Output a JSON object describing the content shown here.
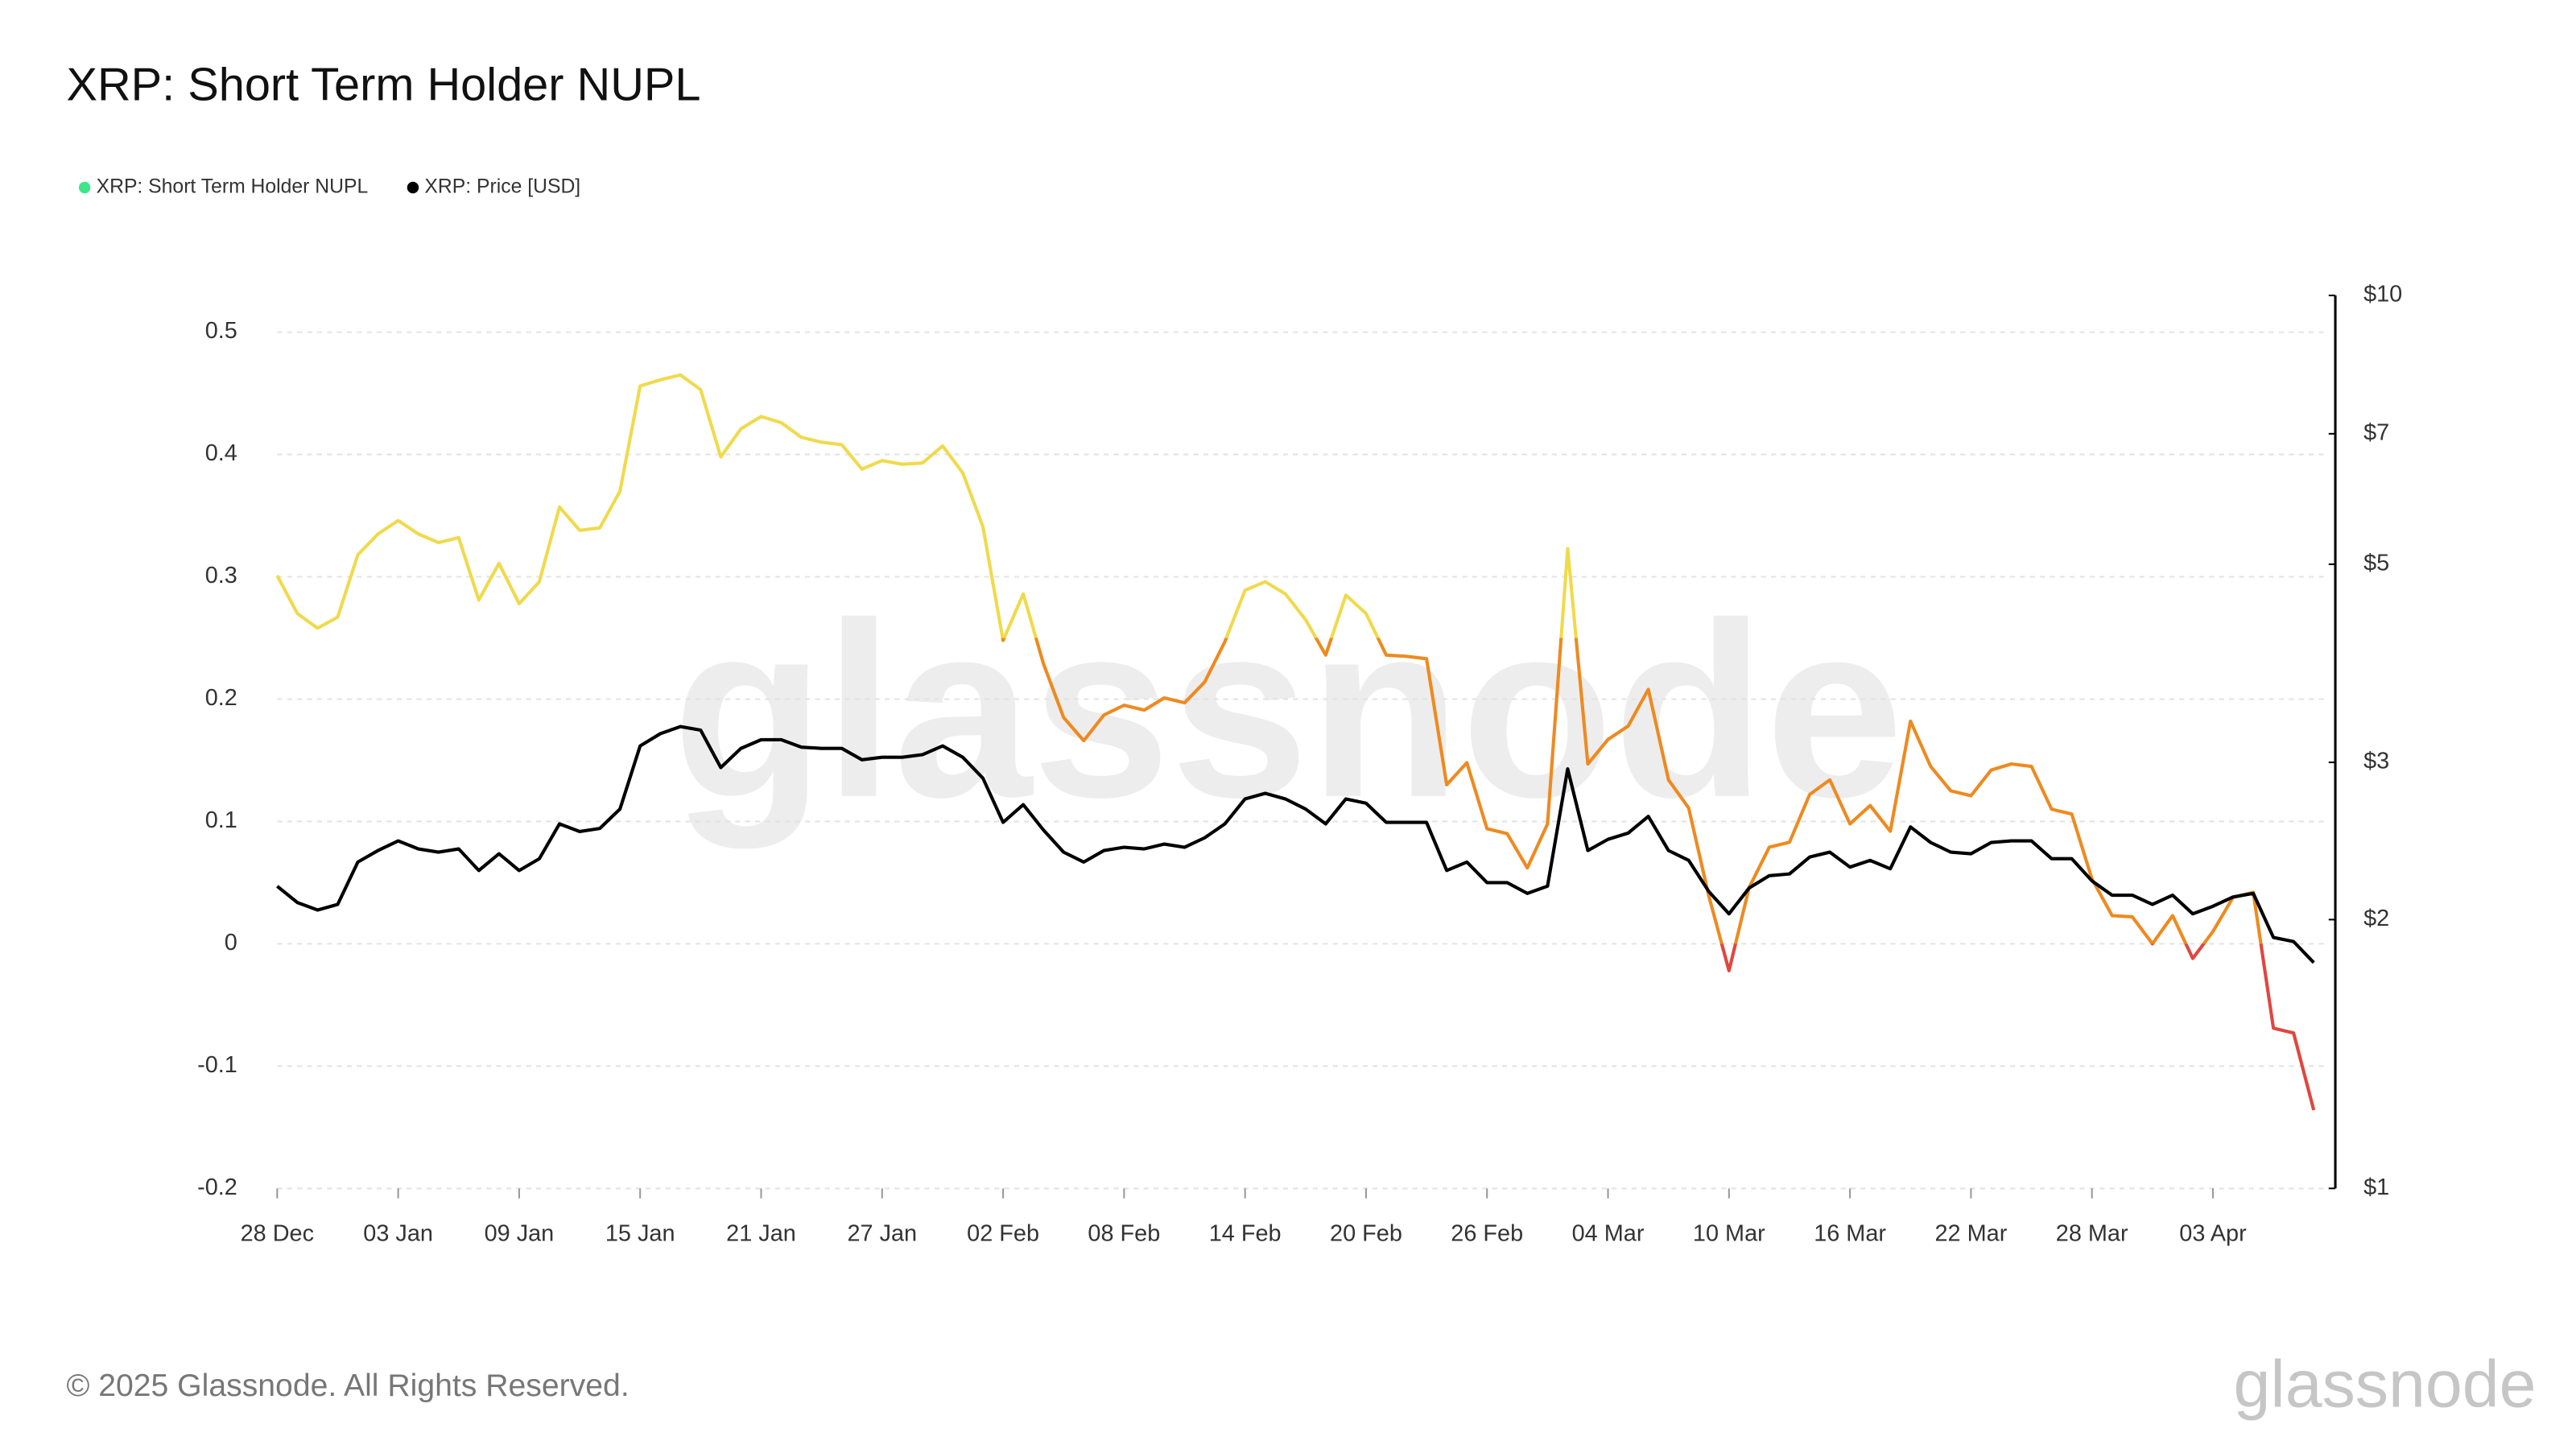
{
  "chart_data": {
    "type": "line",
    "title": "XRP: Short Term Holder NUPL",
    "watermark": "glassnode",
    "footer": "© 2025 Glassnode. All Rights Reserved.",
    "logo": "glassnode",
    "categories": [
      "28 Dec",
      null,
      null,
      null,
      null,
      null,
      "03 Jan",
      null,
      null,
      null,
      null,
      null,
      "09 Jan",
      null,
      null,
      null,
      null,
      null,
      "15 Jan",
      null,
      null,
      null,
      null,
      null,
      "21 Jan",
      null,
      null,
      null,
      null,
      null,
      "27 Jan",
      null,
      null,
      null,
      null,
      null,
      "02 Feb",
      null,
      null,
      null,
      null,
      null,
      "08 Feb",
      null,
      null,
      null,
      null,
      null,
      "14 Feb",
      null,
      null,
      null,
      null,
      null,
      "20 Feb",
      null,
      null,
      null,
      null,
      null,
      "26 Feb",
      null,
      null,
      null,
      null,
      null,
      "04 Mar",
      null,
      null,
      null,
      null,
      null,
      "10 Mar",
      null,
      null,
      null,
      null,
      null,
      "16 Mar",
      null,
      null,
      null,
      null,
      null,
      "22 Mar",
      null,
      null,
      null,
      null,
      null,
      "28 Mar",
      null,
      null,
      null,
      null,
      null,
      "03 Apr",
      null,
      null,
      null,
      null,
      null
    ],
    "ylim": [
      -0.2,
      0.53
    ],
    "yticks": [
      -0.2,
      -0.1,
      0,
      0.1,
      0.2,
      0.3,
      0.4,
      0.5
    ],
    "y2lim": [
      1,
      10
    ],
    "y2_log": true,
    "y2ticks": [
      {
        "value": 1,
        "label": "$1"
      },
      {
        "value": 2,
        "label": "$2"
      },
      {
        "value": 3,
        "label": "$3"
      },
      {
        "value": 5,
        "label": "$5"
      },
      {
        "value": 7,
        "label": "$7"
      },
      {
        "value": 10,
        "label": "$10"
      }
    ],
    "grid": true,
    "legend": "top-left",
    "series": [
      {
        "name": "XRP: Short Term Holder NUPL",
        "color": "#3ee68a",
        "line_colors": {
          "thresholds": [
            0,
            0.25
          ],
          "colors": [
            "#e0463f",
            "#ee8a20",
            "#f0da4c"
          ]
        },
        "values": [
          0.301,
          0.27,
          0.258,
          0.267,
          0.318,
          0.335,
          0.346,
          0.335,
          0.328,
          0.332,
          0.281,
          0.311,
          0.278,
          0.296,
          0.357,
          0.338,
          0.34,
          0.37,
          0.456,
          0.461,
          0.465,
          0.453,
          0.398,
          0.421,
          0.431,
          0.426,
          0.414,
          0.41,
          0.408,
          0.388,
          0.395,
          0.392,
          0.393,
          0.407,
          0.385,
          0.341,
          0.248,
          0.286,
          0.229,
          0.185,
          0.166,
          0.187,
          0.195,
          0.191,
          0.201,
          0.197,
          0.214,
          0.247,
          0.289,
          0.296,
          0.286,
          0.265,
          0.236,
          0.285,
          0.27,
          0.236,
          0.235,
          0.233,
          0.13,
          0.148,
          0.094,
          0.09,
          0.062,
          0.098,
          0.323,
          0.147,
          0.167,
          0.178,
          0.208,
          0.134,
          0.111,
          0.039,
          -0.022,
          0.046,
          0.079,
          0.083,
          0.122,
          0.134,
          0.098,
          0.113,
          0.092,
          0.182,
          0.145,
          0.125,
          0.121,
          0.142,
          0.147,
          0.145,
          0.11,
          0.106,
          0.053,
          0.023,
          0.022,
          0.0,
          0.023,
          -0.012,
          0.01,
          0.038,
          0.042,
          -0.069,
          -0.073,
          -0.136
        ]
      },
      {
        "name": "XRP: Price [USD]",
        "color": "#000000",
        "axis": "y2",
        "values": [
          2.18,
          2.09,
          2.05,
          2.08,
          2.32,
          2.39,
          2.45,
          2.4,
          2.38,
          2.4,
          2.27,
          2.37,
          2.27,
          2.34,
          2.56,
          2.51,
          2.53,
          2.66,
          3.13,
          3.23,
          3.29,
          3.26,
          2.96,
          3.11,
          3.18,
          3.18,
          3.12,
          3.11,
          3.11,
          3.02,
          3.04,
          3.04,
          3.06,
          3.13,
          3.04,
          2.88,
          2.57,
          2.69,
          2.52,
          2.38,
          2.32,
          2.39,
          2.41,
          2.4,
          2.43,
          2.41,
          2.47,
          2.56,
          2.73,
          2.77,
          2.73,
          2.66,
          2.56,
          2.73,
          2.7,
          2.57,
          2.57,
          2.57,
          2.27,
          2.32,
          2.2,
          2.2,
          2.14,
          2.18,
          2.95,
          2.39,
          2.46,
          2.5,
          2.61,
          2.39,
          2.33,
          2.15,
          2.03,
          2.17,
          2.24,
          2.25,
          2.35,
          2.38,
          2.29,
          2.33,
          2.28,
          2.54,
          2.44,
          2.38,
          2.37,
          2.44,
          2.45,
          2.45,
          2.34,
          2.34,
          2.21,
          2.13,
          2.13,
          2.08,
          2.13,
          2.03,
          2.07,
          2.12,
          2.14,
          1.91,
          1.89,
          1.79
        ]
      }
    ]
  }
}
